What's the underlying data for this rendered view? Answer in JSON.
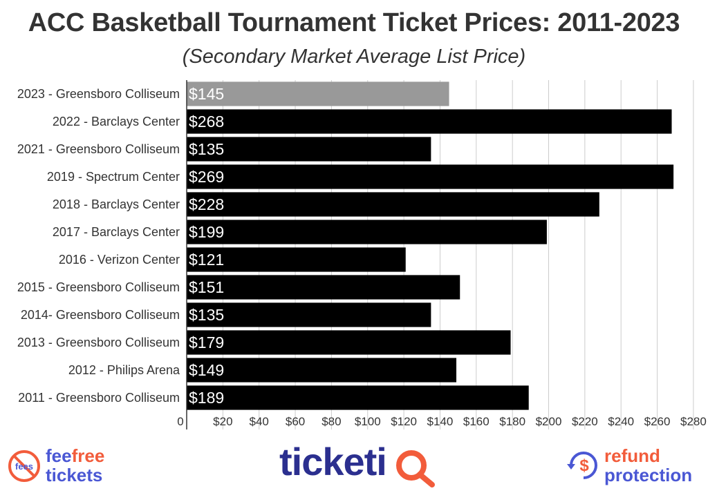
{
  "chart_data": {
    "type": "bar",
    "orientation": "horizontal",
    "title": "ACC Basketball Tournament Ticket Prices: 2011-2023",
    "subtitle": "(Secondary Market Average List Price)",
    "categories": [
      "2023 - Greensboro Colliseum",
      "2022 - Barclays Center",
      "2021 - Greensboro Colliseum",
      "2019 - Spectrum Center",
      "2018 - Barclays Center",
      "2017 - Barclays Center",
      "2016 - Verizon Center",
      "2015 - Greensboro Colliseum",
      "2014- Greensboro Colliseum",
      "2013 - Greensboro Colliseum",
      "2012 - Philips Arena",
      "2011 - Greensboro Colliseum"
    ],
    "values": [
      145,
      268,
      135,
      269,
      228,
      199,
      121,
      151,
      135,
      179,
      149,
      189
    ],
    "value_labels": [
      "$145",
      "$268",
      "$135",
      "$269",
      "$228",
      "$199",
      "$121",
      "$151",
      "$135",
      "$179",
      "$149",
      "$189"
    ],
    "highlight_index": 0,
    "xlim": [
      0,
      285
    ],
    "xticks": [
      0,
      20,
      40,
      60,
      80,
      100,
      120,
      140,
      160,
      180,
      200,
      220,
      240,
      260,
      280
    ],
    "xtick_labels": [
      "0",
      "$20",
      "$40",
      "$60",
      "$80",
      "$100",
      "$120",
      "$140",
      "$160",
      "$180",
      "$200",
      "$220",
      "$240",
      "$260",
      "$280"
    ],
    "grid": true,
    "colors": {
      "bar": "#000000",
      "highlight": "#999999",
      "grid": "#cccccc",
      "text": "#333333"
    }
  },
  "footer": {
    "fee_icon_text": "fees",
    "fee_line1": "fee",
    "fee_line1_accent": "free",
    "fee_line2": "tickets",
    "brand_main": "ticketi",
    "refund_icon_symbol": "$",
    "refund_line1": "refund",
    "refund_line2": "protection",
    "colors": {
      "blue": "#4a57d4",
      "orange": "#f25c3b",
      "navy": "#2b2f8f"
    }
  }
}
